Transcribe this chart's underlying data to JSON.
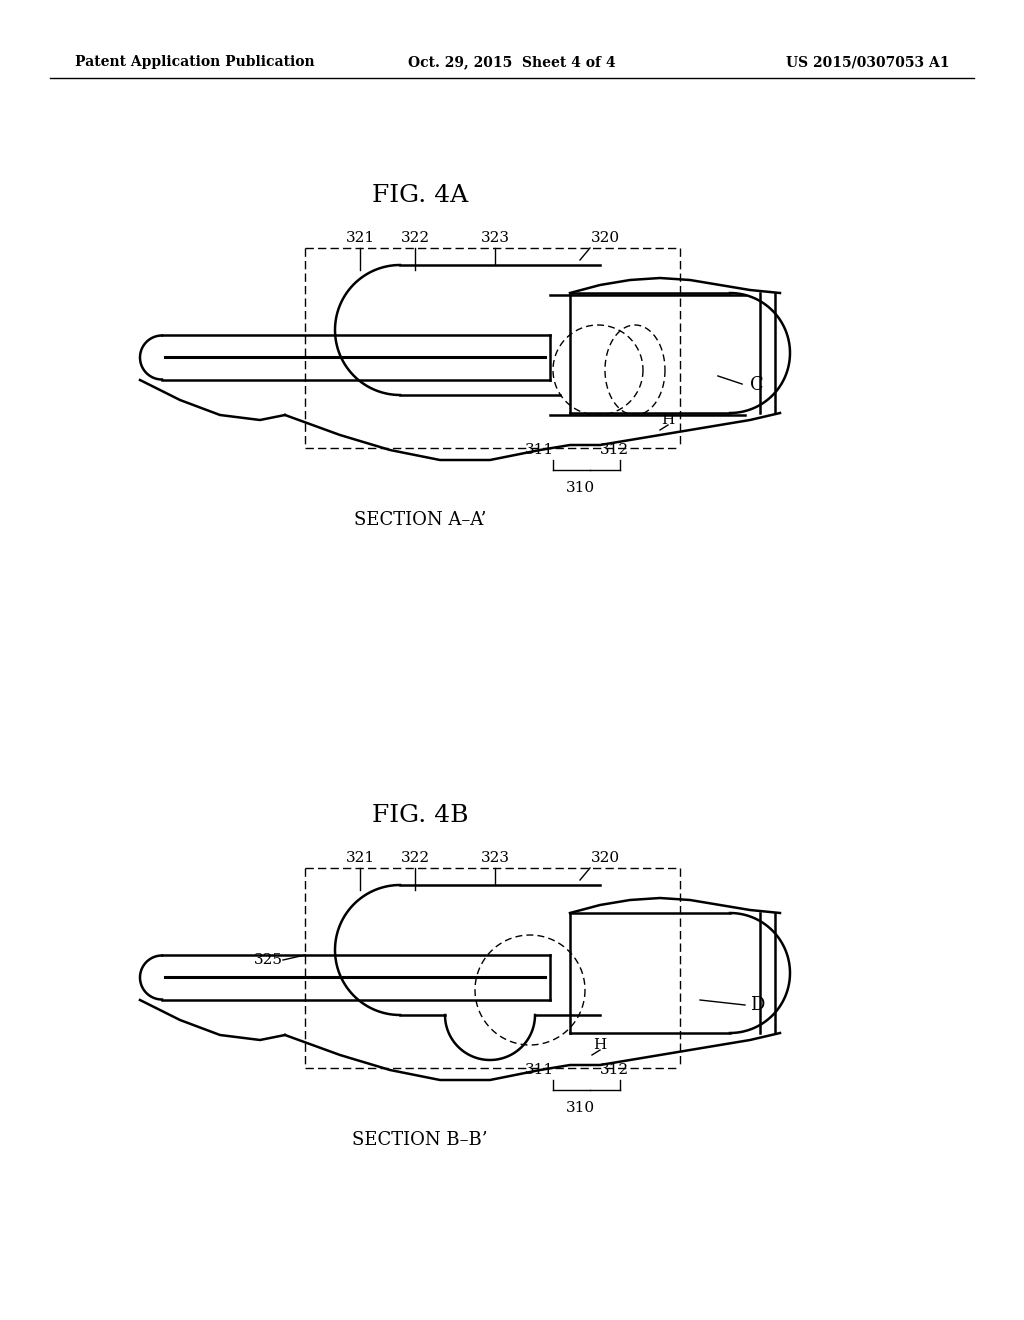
{
  "bg_color": "#ffffff",
  "text_color": "#000000",
  "line_color": "#000000",
  "header_left": "Patent Application Publication",
  "header_center": "Oct. 29, 2015  Sheet 4 of 4",
  "header_right": "US 2015/0307053 A1",
  "fig4a_title": "FIG. 4A",
  "fig4b_title": "FIG. 4B",
  "section_a": "SECTION A–A’",
  "section_b": "SECTION B–B’"
}
